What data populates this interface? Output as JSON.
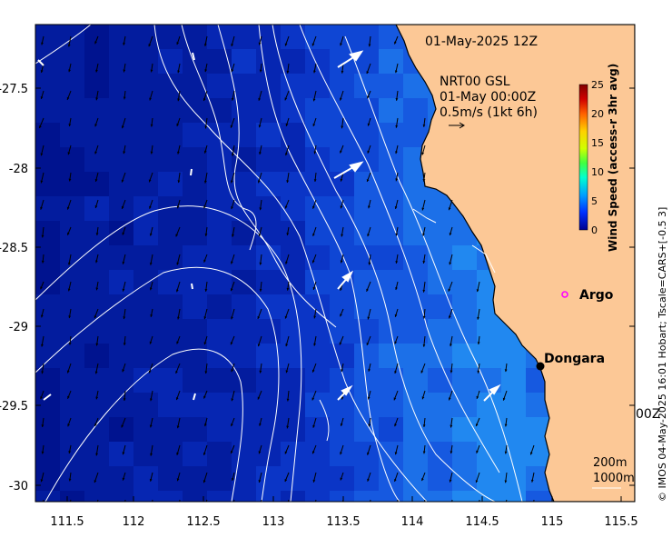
{
  "map": {
    "date_title": "01-May-2025 12Z",
    "model_label": "NRT00 GSL",
    "model_time": "01-May 00:00Z",
    "vector_scale_label": "0.5m/s (1kt 6h)",
    "x_ticks": [
      "111.5",
      "112",
      "112.5",
      "113",
      "113.5",
      "114",
      "114.5",
      "115",
      "115.5"
    ],
    "y_ticks": [
      "-27.5",
      "-28",
      "-28.5",
      "-29",
      "-29.5",
      "-30"
    ],
    "colorbar": {
      "title": "Wind Speed (access-r 3hr avg)",
      "ticks": [
        "25",
        "20",
        "15",
        "10",
        "5",
        "0"
      ],
      "colors": [
        "#00008f",
        "#0030ff",
        "#00a0ff",
        "#00ffd0",
        "#40ff40",
        "#d0ff00",
        "#ffd000",
        "#ff6000",
        "#d00000",
        "#800000"
      ]
    },
    "places": [
      {
        "name": "Argo",
        "marker": "ring-marker",
        "color": "#ff00ff"
      },
      {
        "name": "Dongara",
        "marker": "dot-marker",
        "color": "#000000"
      }
    ],
    "depth_legend": [
      "200m",
      "1000m"
    ],
    "edge_fragment": "00Z",
    "credit": "© IMOS 04-May-2025 16:01 Hobart; Tscale=CARS+[-0.5 3]",
    "colors": {
      "land": "#fcc896",
      "ocean_deep": "#00138f",
      "ocean_mid": "#0a40d8",
      "ocean_light": "#1a8cf0"
    }
  }
}
